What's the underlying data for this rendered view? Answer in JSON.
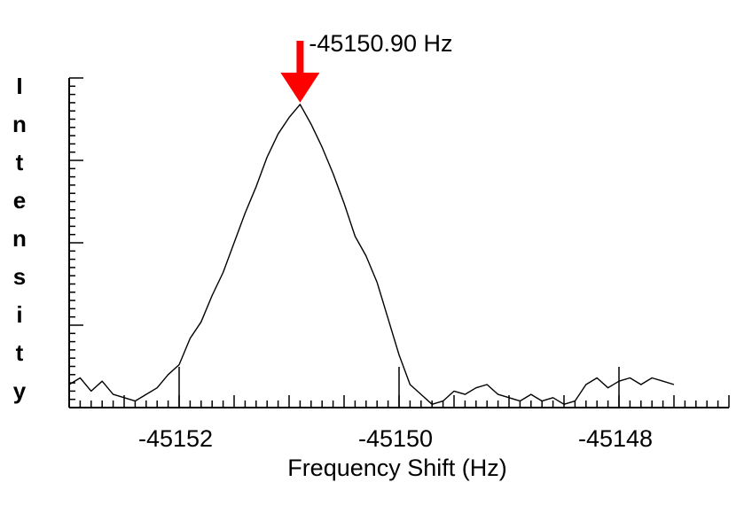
{
  "chart_data": {
    "type": "line",
    "title": "",
    "xlabel": "Frequency Shift (Hz)",
    "ylabel": "Intensity",
    "xlim": [
      -45153.0,
      -45147.0
    ],
    "ylim": [
      0,
      1.0
    ],
    "x_ticks": [
      -45152,
      -45150,
      -45148
    ],
    "x_tick_labels": [
      "-45152",
      "-45150",
      "-45148"
    ],
    "annotation": {
      "text": "-45150.90 Hz",
      "x": -45150.9,
      "marker": "red-down-arrow"
    },
    "series": [
      {
        "x": [
          -45153.0,
          -45152.9,
          -45152.8,
          -45152.7,
          -45152.6,
          -45152.5,
          -45152.4,
          -45152.3,
          -45152.2,
          -45152.1,
          -45152.0,
          -45151.9,
          -45151.8,
          -45151.7,
          -45151.6,
          -45151.5,
          -45151.4,
          -45151.3,
          -45151.2,
          -45151.1,
          -45151.0,
          -45150.9,
          -45150.8,
          -45150.7,
          -45150.6,
          -45150.5,
          -45150.4,
          -45150.3,
          -45150.2,
          -45150.1,
          -45150.0,
          -45149.9,
          -45149.8,
          -45149.7,
          -45149.6,
          -45149.5,
          -45149.4,
          -45149.3,
          -45149.2,
          -45149.1,
          -45149.0,
          -45148.9,
          -45148.8,
          -45148.7,
          -45148.6,
          -45148.5,
          -45148.4,
          -45148.3,
          -45148.2,
          -45148.1,
          -45148.0,
          -45147.9,
          -45147.8,
          -45147.7,
          -45147.6,
          -45147.5
        ],
        "y": [
          0.07,
          0.09,
          0.05,
          0.08,
          0.04,
          0.03,
          0.02,
          0.04,
          0.06,
          0.1,
          0.13,
          0.21,
          0.26,
          0.34,
          0.41,
          0.5,
          0.59,
          0.67,
          0.76,
          0.83,
          0.88,
          0.92,
          0.86,
          0.79,
          0.71,
          0.62,
          0.52,
          0.46,
          0.38,
          0.27,
          0.16,
          0.07,
          0.04,
          0.01,
          0.02,
          0.05,
          0.04,
          0.06,
          0.07,
          0.04,
          0.03,
          0.02,
          0.04,
          0.02,
          0.03,
          0.01,
          0.02,
          0.07,
          0.09,
          0.06,
          0.08,
          0.09,
          0.07,
          0.09,
          0.08,
          0.07
        ]
      }
    ],
    "grid": false,
    "line_color": "#000000",
    "arrow_color": "#ff0000"
  }
}
